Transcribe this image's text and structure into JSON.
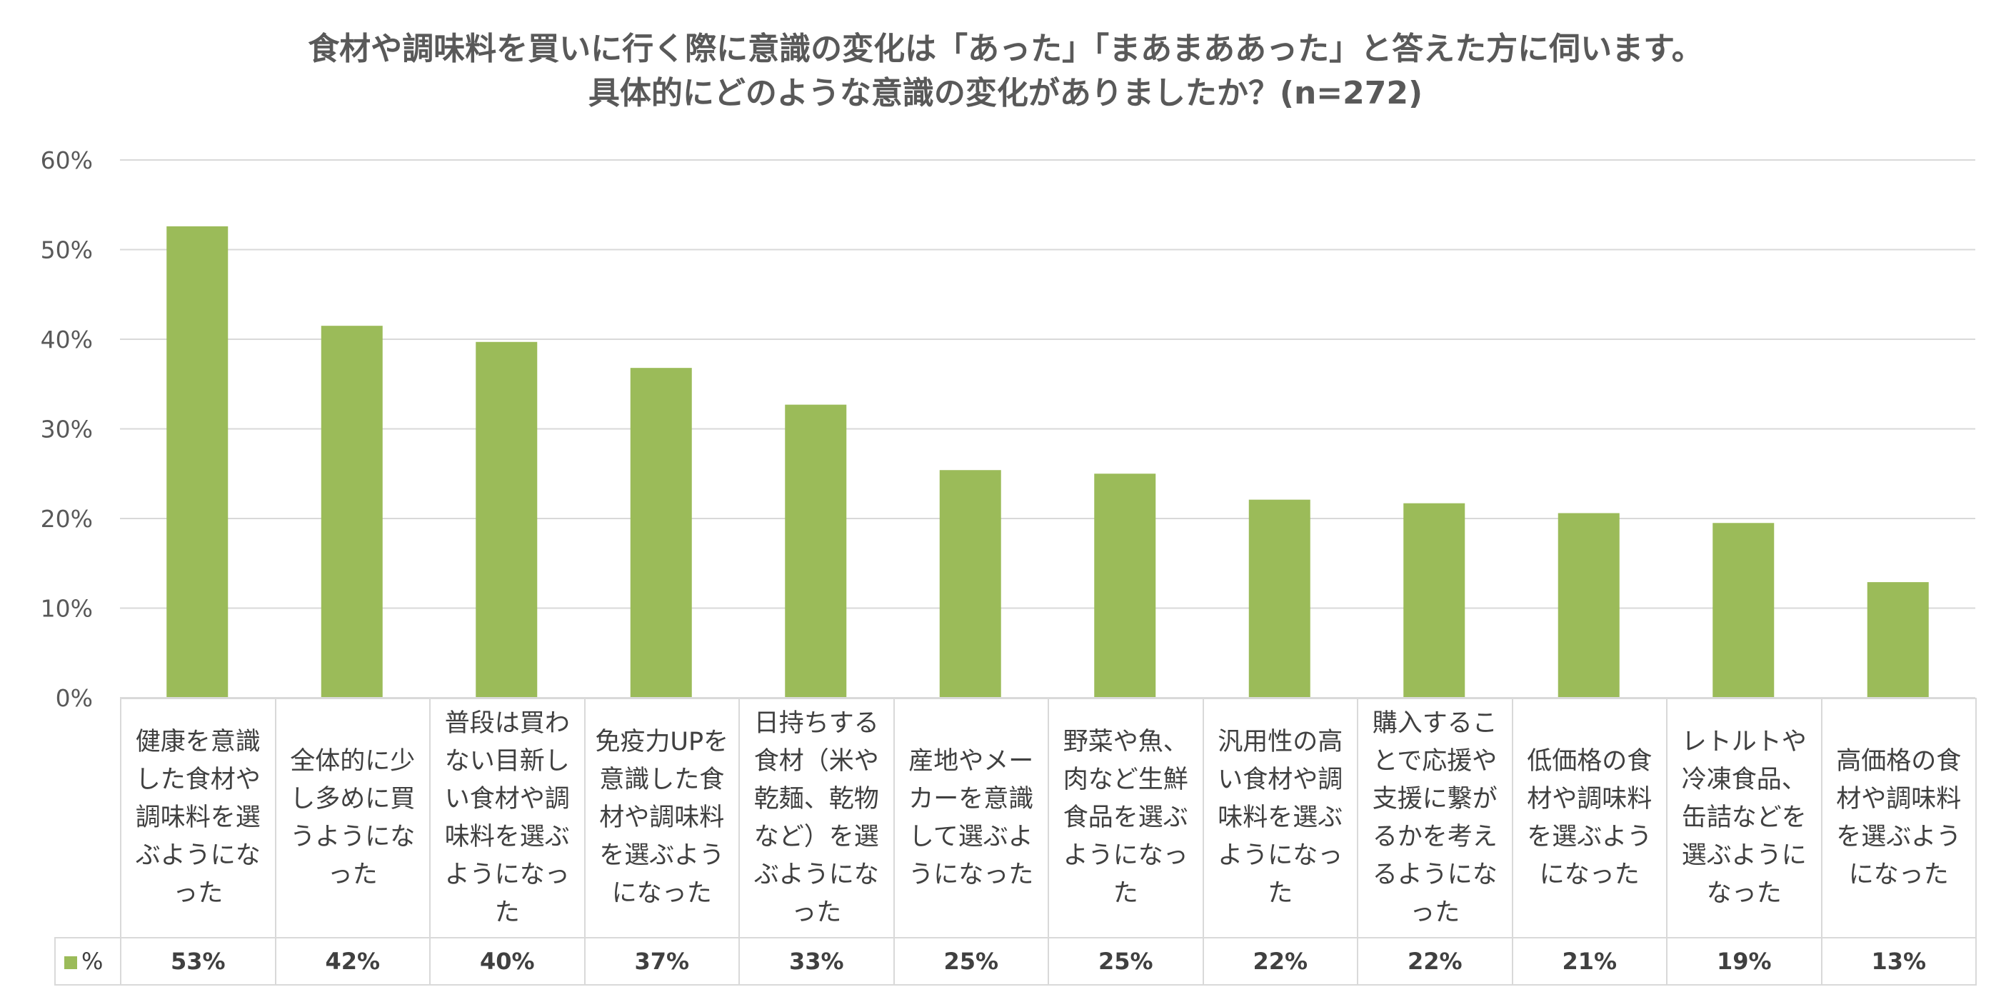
{
  "chart_data": {
    "type": "bar",
    "title_lines": [
      "食材や調味料を買いに行く際に意識の変化は「あった」「まあまああった」と答えた方に伺います。",
      "具体的にどのような意識の変化がありましたか？(n=272)"
    ],
    "categories": [
      "健康を意識した食材や調味料を選ぶようになった",
      "全体的に少し多めに買うようになった",
      "普段は買わない目新しい食材や調味料を選ぶようになった",
      "免疫力UPを意識した食材や調味料を選ぶようになった",
      "日持ちする食材（米や乾麺、乾物など）を選ぶようになった",
      "産地やメーカーを意識して選ぶようになった",
      "野菜や魚、肉など生鮮食品を選ぶようになった",
      "汎用性の高い食材や調味料を選ぶようになった",
      "購入することで応援や支援に繋がるかを考えるようになった",
      "低価格の食材や調味料を選ぶようになった",
      "レトルトや冷凍食品、缶詰などを選ぶようになった",
      "高価格の食材や調味料を選ぶようになった"
    ],
    "series": [
      {
        "name": "%",
        "values": [
          52.6,
          41.5,
          39.7,
          36.8,
          32.7,
          25.4,
          25.0,
          22.1,
          21.7,
          20.6,
          19.5,
          12.9
        ],
        "labels": [
          "53%",
          "42%",
          "40%",
          "37%",
          "33%",
          "25%",
          "25%",
          "22%",
          "22%",
          "21%",
          "19%",
          "13%"
        ],
        "color": "#9bbb59"
      }
    ],
    "y_ticks": [
      "0%",
      "10%",
      "20%",
      "30%",
      "40%",
      "50%",
      "60%"
    ],
    "ylim": [
      0,
      60
    ],
    "grid": true,
    "legend": "data-table"
  }
}
